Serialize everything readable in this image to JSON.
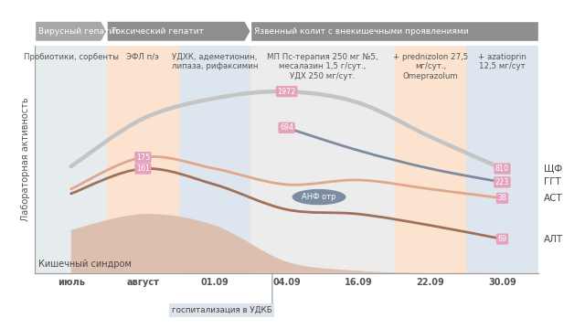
{
  "chart_data": {
    "type": "line",
    "phases": [
      {
        "text": "Вирусный гепатит",
        "from": "июль"
      },
      {
        "text": "Токсический гепатит",
        "from": "август"
      },
      {
        "text": "Язвенный колит с внекишечными проявлениями",
        "from": "04.09"
      }
    ],
    "therapy": [
      {
        "text": "Пробиотики, сорбенты",
        "from": "июль"
      },
      {
        "text": "ЭФЛ п/э",
        "from": "август"
      },
      {
        "text": "УДХК, адеметионин,\nлипаза, рифаксимин",
        "from": "01.09"
      },
      {
        "text": "МП Пс-терапия 250 мг №5,\nмесалазин 1,5 г/сут.,\nУДХ 250 мг/сут.",
        "from": "04.09"
      },
      {
        "text": "+ prednizolon 27,5\nмг/сут.,\nOmeprazolum",
        "from": "22.09"
      },
      {
        "text": "+ azatioprin\n12,5 мг/сут",
        "from": "30.09"
      }
    ],
    "y_label": "Лабораторная активность",
    "categories": [
      "июль",
      "август",
      "01.09",
      "04.09",
      "16.09",
      "22.09",
      "30.09"
    ],
    "ylim": [
      0,
      100
    ],
    "tick_labels": "x",
    "series": [
      {
        "name": "Кишечный синдром",
        "type": "area",
        "color": "#dcbfae",
        "values": [
          19,
          26,
          21,
          5,
          1,
          0,
          0
        ]
      },
      {
        "name": "ЩФ",
        "color": "#c4c4c4",
        "values": [
          47,
          68,
          77,
          80,
          75,
          60,
          46
        ],
        "annotations": [
          null,
          null,
          null,
          "1972",
          null,
          null,
          "810"
        ]
      },
      {
        "name": "ГГТ",
        "color": "#7d8aa0",
        "values": [
          null,
          null,
          null,
          64,
          54,
          46,
          40
        ],
        "annotations": [
          null,
          null,
          null,
          "694",
          null,
          null,
          "223"
        ]
      },
      {
        "name": "АСТ",
        "color": "#e2a68c",
        "values": [
          37,
          51,
          46,
          39,
          41,
          37,
          33
        ],
        "annotations": [
          null,
          "175",
          null,
          null,
          null,
          null,
          "38"
        ]
      },
      {
        "name": "АЛТ",
        "color": "#a0705a",
        "values": [
          35,
          46,
          39,
          28,
          26,
          21,
          15
        ],
        "annotations": [
          null,
          "161",
          null,
          null,
          null,
          null,
          "69"
        ]
      }
    ],
    "annotations": [
      {
        "text": "АНФ отр"
      },
      {
        "text": "госпитализация в УДКБ",
        "x": "04.09"
      }
    ]
  }
}
